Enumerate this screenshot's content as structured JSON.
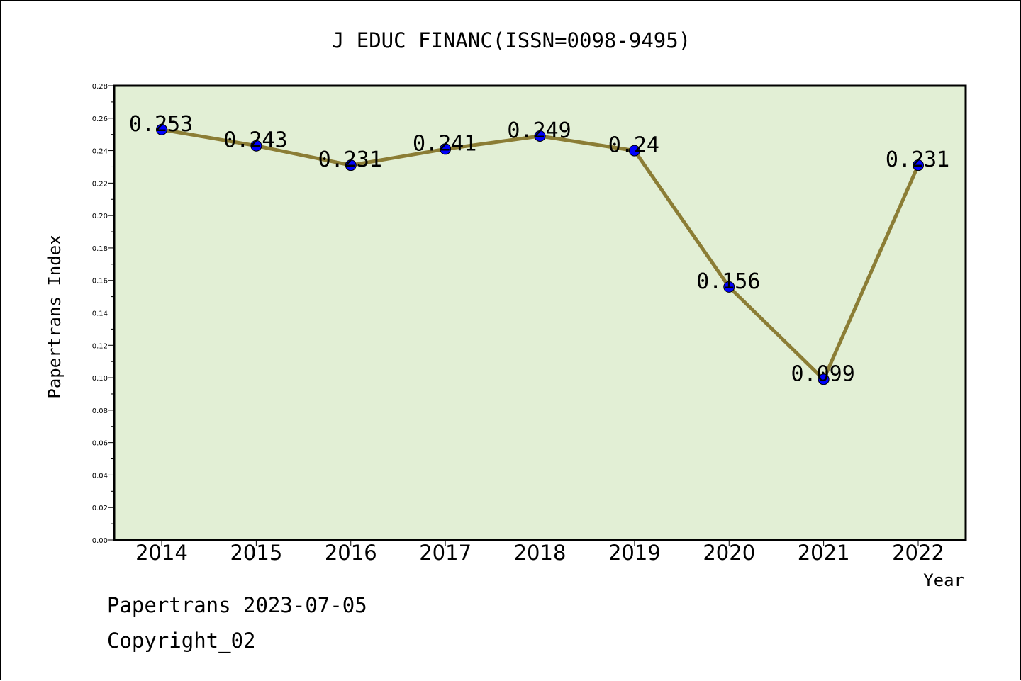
{
  "chart_data": {
    "type": "line",
    "title": "J EDUC FINANC(ISSN=0098-9495)",
    "xlabel": "Year",
    "ylabel": "Papertrans Index",
    "categories": [
      "2014",
      "2015",
      "2016",
      "2017",
      "2018",
      "2019",
      "2020",
      "2021",
      "2022"
    ],
    "series": [
      {
        "values": [
          0.253,
          0.243,
          0.231,
          0.241,
          0.249,
          0.24,
          0.156,
          0.099,
          0.231
        ]
      }
    ],
    "data_labels": [
      "0.253",
      "0.243",
      "0.231",
      "0.241",
      "0.249",
      "0.24",
      "0.156",
      "0.099",
      "0.231"
    ],
    "ylim": [
      0,
      0.28
    ],
    "yticks": [
      "0.00",
      "0.02",
      "0.04",
      "0.06",
      "0.08",
      "0.10",
      "0.12",
      "0.14",
      "0.16",
      "0.18",
      "0.20",
      "0.22",
      "0.24",
      "0.26",
      "0.28"
    ],
    "grid": false,
    "legend": "none",
    "colors": {
      "plot_background": "#e2efd5",
      "line": "#8b7d35",
      "marker": "#0000ff"
    }
  },
  "footer": {
    "source": "Papertrans 2023-07-05",
    "copyright": "Copyright_02"
  }
}
